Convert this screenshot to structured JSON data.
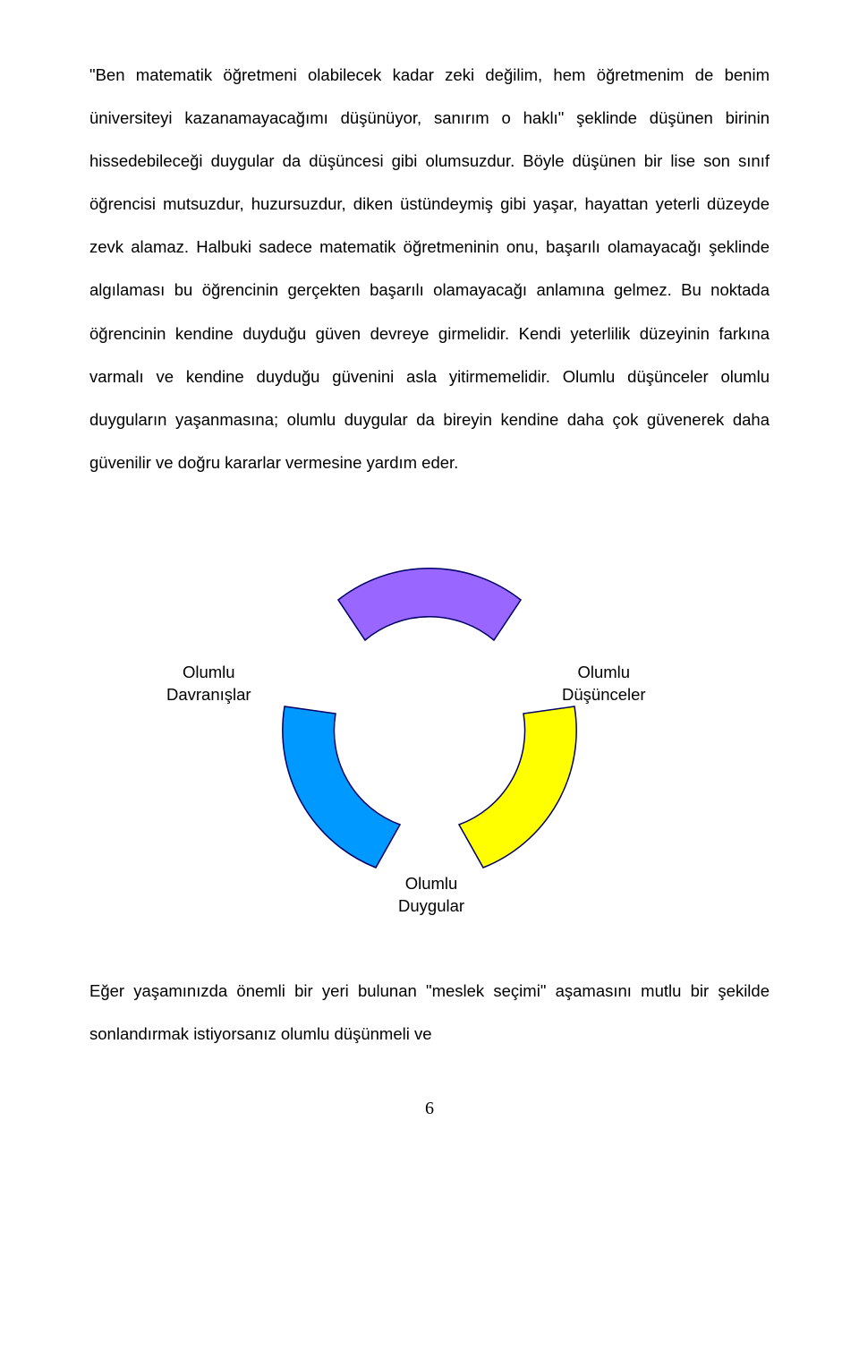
{
  "paragraphs": {
    "p1": "\"Ben matematik öğretmeni olabilecek kadar zeki değilim, hem öğretmenim de benim üniversiteyi kazanamayacağımı düşünüyor, sanırım o haklı\" şeklinde düşünen birinin hissedebileceği duygular da düşüncesi gibi olumsuzdur. Böyle düşünen bir lise son sınıf öğrencisi mutsuzdur, huzursuzdur, diken üstündeymiş gibi yaşar, hayattan yeterli düzeyde zevk alamaz. Halbuki sadece matematik öğretmeninin onu, başarılı olamayacağı şeklinde algılaması bu öğrencinin gerçekten başarılı olamayacağı anlamına gelmez. Bu noktada öğrencinin kendine duyduğu güven devreye girmelidir. Kendi yeterlilik düzeyinin farkına varmalı ve kendine duyduğu güvenini asla yitirmemelidir. Olumlu düşünceler olumlu duyguların yaşanmasına; olumlu duygular da bireyin kendine daha çok güvenerek daha güvenilir ve doğru kararlar vermesine yardım eder.",
    "p2": "Eğer yaşamınızda önemli bir yeri bulunan \"meslek seçimi\" aşamasını mutlu bir şekilde sonlandırmak istiyorsanız olumlu düşünmeli ve"
  },
  "diagram": {
    "labels": {
      "left": "Olumlu\nDavranışlar",
      "right": "Olumlu\nDüşünceler",
      "bottom": "Olumlu\nDuygular"
    },
    "colors": {
      "top_fill": "#9966ff",
      "right_fill": "#ffff00",
      "left_fill": "#0099ff",
      "stroke": "#000066",
      "stroke_width": 1.5
    }
  },
  "page_number": "6"
}
